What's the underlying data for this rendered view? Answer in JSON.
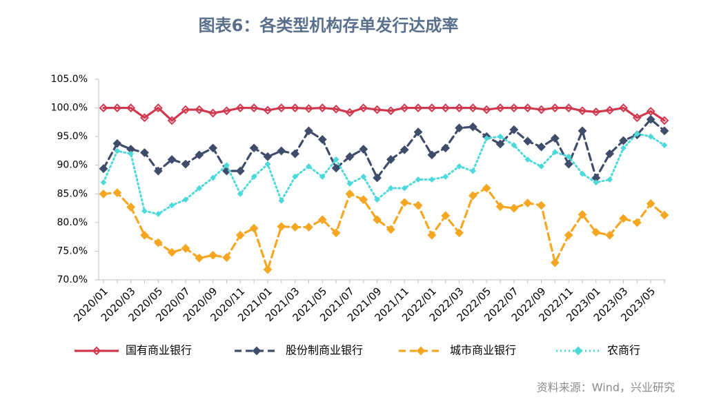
{
  "chart_data": {
    "type": "line",
    "title": "图表6：各类型机构存单发行达成率",
    "source": "资料来源：Wind，兴业研究",
    "categories": [
      "2020/01",
      null,
      "2020/03",
      null,
      "2020/05",
      null,
      "2020/07",
      null,
      "2020/09",
      null,
      "2020/11",
      null,
      "2021/01",
      null,
      "2021/03",
      null,
      "2021/05",
      null,
      "2021/07",
      null,
      "2021/09",
      null,
      "2021/11",
      null,
      "2022/01",
      null,
      "2022/03",
      null,
      "2022/05",
      null,
      "2022/07",
      null,
      "2022/09",
      null,
      "2022/11",
      null,
      "2023/01",
      null,
      "2023/03",
      null,
      "2023/05",
      null
    ],
    "ylim": [
      70,
      105
    ],
    "yticks": [
      {
        "value": 70,
        "label": "70.0%"
      },
      {
        "value": 75,
        "label": "75.0%"
      },
      {
        "value": 80,
        "label": "80.0%"
      },
      {
        "value": 85,
        "label": "85.0%"
      },
      {
        "value": 90,
        "label": "90.0%"
      },
      {
        "value": 95,
        "label": "95.0%"
      },
      {
        "value": 100,
        "label": "100.0%"
      },
      {
        "value": 105,
        "label": "105.0%"
      }
    ],
    "legend": "bottom",
    "series": [
      {
        "name": "国有商业银行",
        "color": "#d0384f",
        "dash": "solid",
        "values": [
          100,
          100,
          100,
          98.3,
          100,
          97.8,
          99.7,
          99.7,
          99.1,
          99.5,
          100,
          100,
          99.6,
          100,
          100,
          99.9,
          100,
          99.8,
          99.2,
          100,
          99.7,
          99.5,
          100,
          100,
          100,
          100,
          100,
          100,
          99.7,
          100,
          100,
          100,
          99.7,
          100,
          100,
          99.5,
          99.3,
          99.6,
          100,
          98.3,
          99.4,
          97.8
        ]
      },
      {
        "name": "股份制商业银行",
        "color": "#3f4d6b",
        "dash": "dashed",
        "values": [
          89.4,
          93.8,
          92.8,
          92.2,
          89,
          91,
          90.2,
          91.8,
          93,
          89,
          89,
          93,
          91.5,
          92.5,
          92,
          96,
          94.5,
          89.5,
          91.5,
          92.8,
          87.8,
          91,
          92.7,
          95.8,
          91.8,
          93,
          96.5,
          96.7,
          95,
          93.7,
          96.2,
          94.2,
          93.2,
          94.7,
          90.2,
          96,
          87.8,
          92,
          94.3,
          95.3,
          98,
          96
        ]
      },
      {
        "name": "城市商业银行",
        "color": "#f5a623",
        "dash": "dashed",
        "values": [
          85,
          85.2,
          82.7,
          77.8,
          76.5,
          74.8,
          75.5,
          73.8,
          74.3,
          73.9,
          77.8,
          79,
          71.8,
          79.3,
          79.2,
          79.2,
          80.5,
          78.2,
          85,
          84,
          80.5,
          78.8,
          83.5,
          83,
          77.8,
          81.2,
          78.2,
          84.7,
          86,
          82.8,
          82.5,
          83.4,
          83,
          73,
          77.8,
          81.4,
          78.3,
          77.8,
          80.7,
          80,
          83.3,
          81.3
        ]
      },
      {
        "name": "农商行",
        "color": "#4dd9d9",
        "dash": "dotted",
        "values": [
          87,
          92.5,
          92,
          82,
          81.5,
          83,
          84,
          86,
          87.8,
          90,
          85,
          88,
          90.2,
          83.8,
          88,
          89.8,
          88,
          91,
          86.8,
          88,
          84,
          86,
          86,
          87.5,
          87.5,
          88,
          89.8,
          89,
          94.7,
          95,
          93.5,
          91,
          89.8,
          92.3,
          91.5,
          88.5,
          87,
          87.5,
          93,
          95.5,
          95,
          93.5
        ]
      }
    ]
  }
}
